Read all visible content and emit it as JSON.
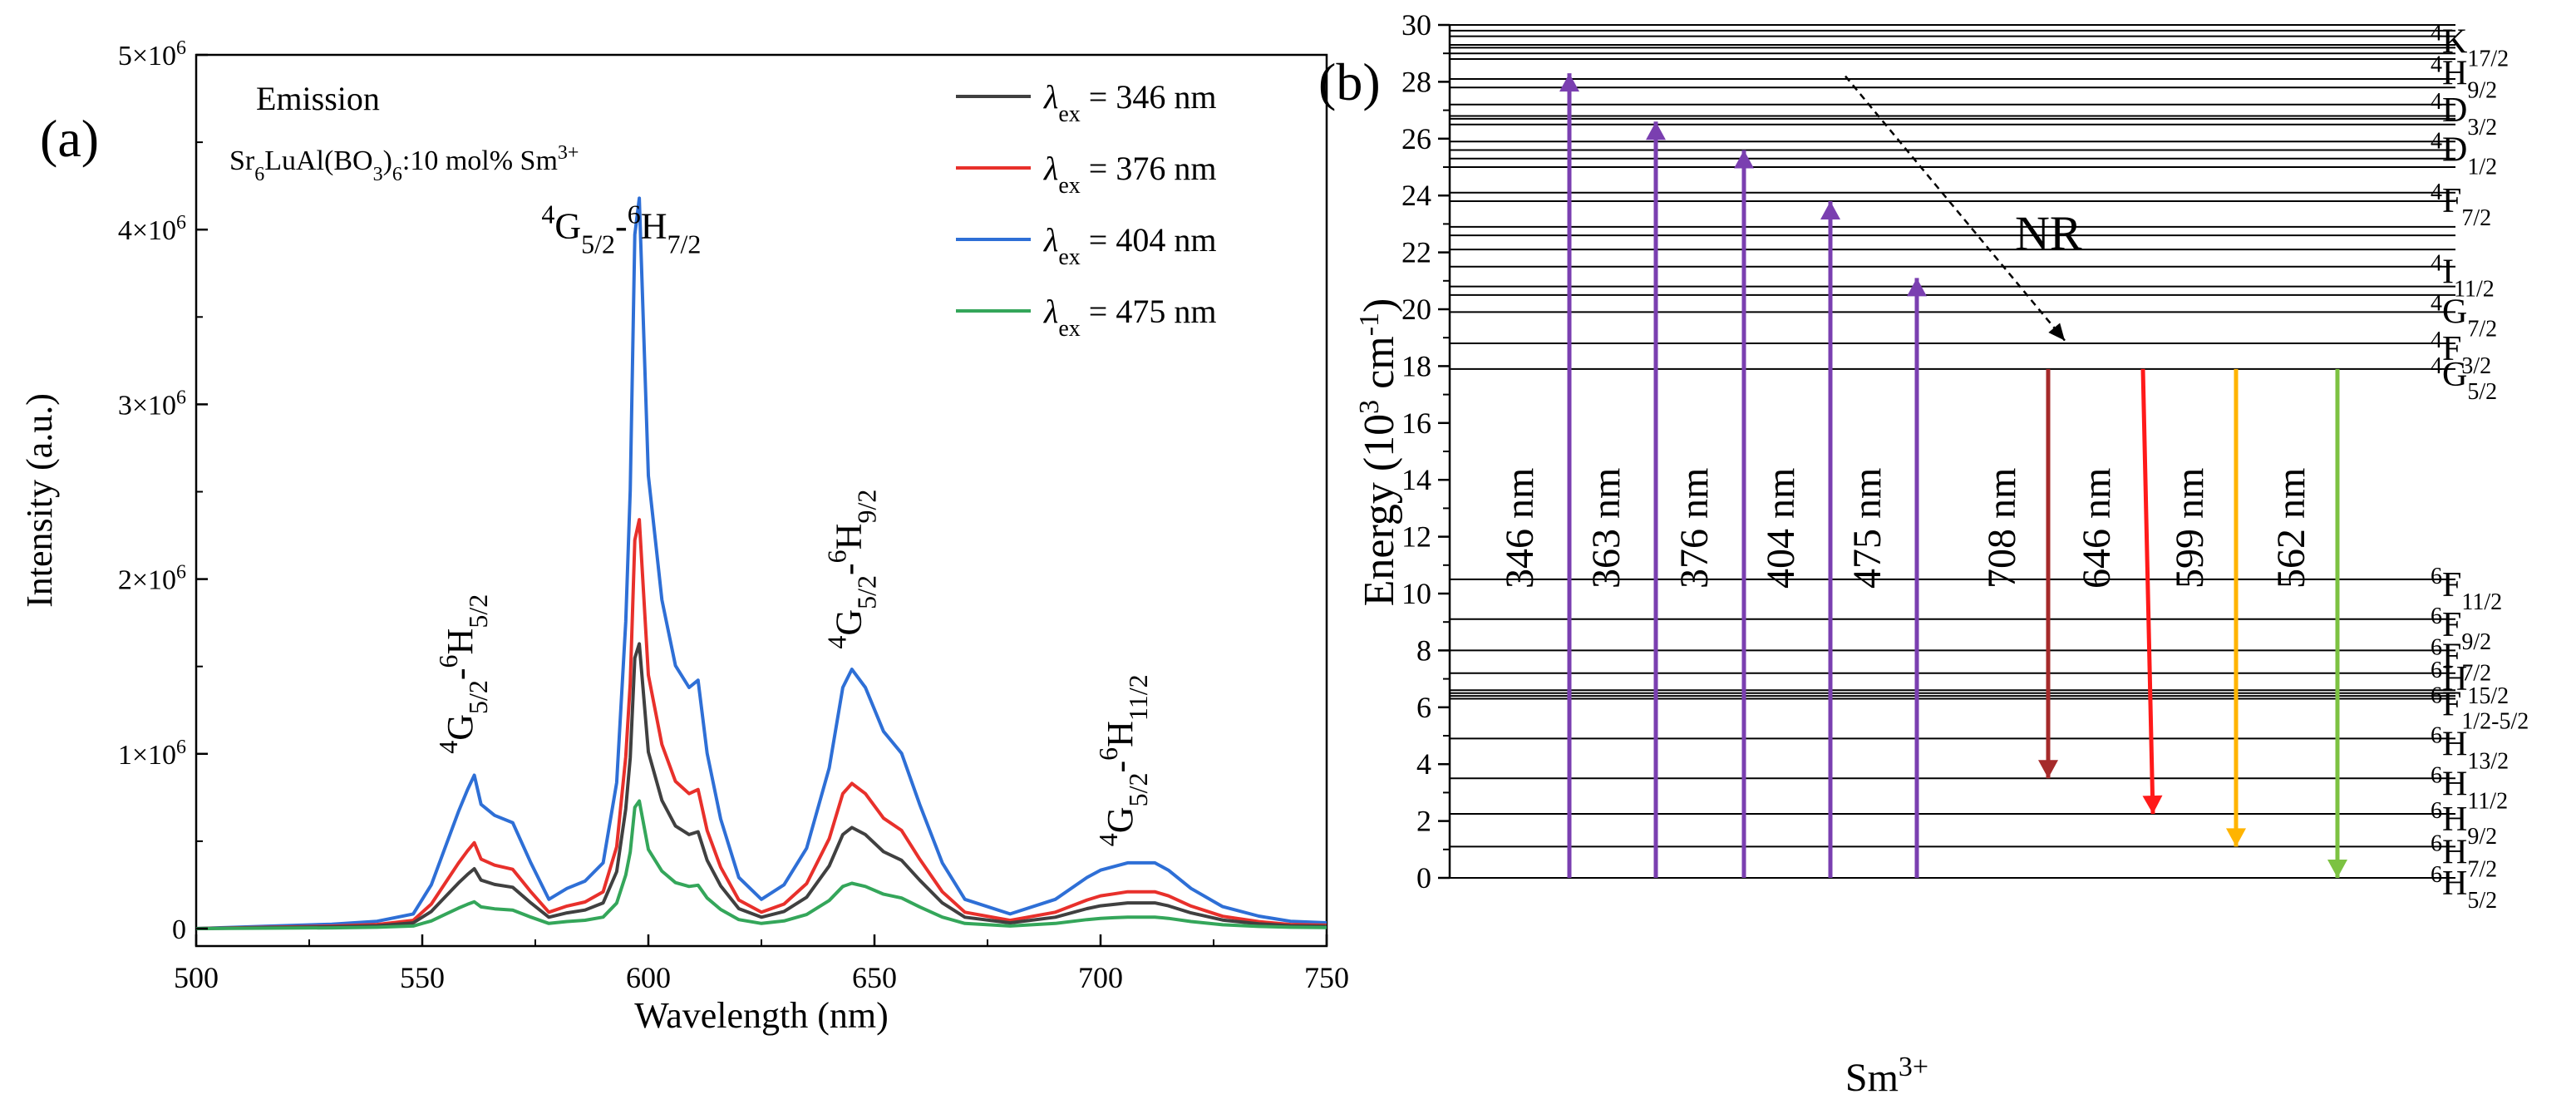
{
  "chart_data": [
    {
      "type": "line",
      "panel_label": "(a)",
      "title": "Emission",
      "sample": {
        "base": "Sr",
        "s1": "6",
        "mid1": "LuAl(BO",
        "s2": "3",
        "mid2": ")",
        "s3": "6",
        "tail": ":10 mol% Sm",
        "sup": "3+"
      },
      "xlabel": "Wavelength (nm)",
      "ylabel": "Intensity (a.u.)",
      "xlim": [
        500,
        750
      ],
      "ylim": [
        -100000,
        5000000
      ],
      "x_ticks": [
        "500",
        "550",
        "600",
        "650",
        "700",
        "750"
      ],
      "y_ticks": [
        {
          "value": 0,
          "mant": "0",
          "exp": ""
        },
        {
          "value": 1000000,
          "mant": "1×10",
          "exp": "6"
        },
        {
          "value": 2000000,
          "mant": "2×10",
          "exp": "6"
        },
        {
          "value": 3000000,
          "mant": "3×10",
          "exp": "6"
        },
        {
          "value": 4000000,
          "mant": "4×10",
          "exp": "6"
        },
        {
          "value": 5000000,
          "mant": "5×10",
          "exp": "6"
        }
      ],
      "x": [
        500,
        515,
        530,
        540,
        548,
        552,
        555,
        558,
        560,
        561.5,
        563,
        566,
        570,
        574,
        578,
        582,
        586,
        590,
        593,
        595,
        596,
        597,
        598,
        600,
        603,
        606,
        609,
        611,
        613,
        616,
        620,
        625,
        630,
        635,
        640,
        643,
        645,
        648,
        652,
        656,
        660,
        665,
        670,
        680,
        690,
        697,
        700,
        703,
        706,
        709,
        712,
        715,
        720,
        727,
        735,
        742,
        750
      ],
      "shape": [
        0.0,
        0.003,
        0.006,
        0.01,
        0.02,
        0.06,
        0.11,
        0.16,
        0.19,
        0.21,
        0.17,
        0.155,
        0.145,
        0.09,
        0.04,
        0.055,
        0.065,
        0.09,
        0.2,
        0.42,
        0.6,
        0.95,
        1.0,
        0.62,
        0.45,
        0.36,
        0.33,
        0.34,
        0.24,
        0.15,
        0.07,
        0.04,
        0.06,
        0.11,
        0.22,
        0.33,
        0.355,
        0.33,
        0.27,
        0.24,
        0.17,
        0.09,
        0.04,
        0.02,
        0.04,
        0.07,
        0.08,
        0.085,
        0.09,
        0.09,
        0.09,
        0.08,
        0.055,
        0.03,
        0.017,
        0.01,
        0.008
      ],
      "series": [
        {
          "name": "346 nm",
          "color": "#404040",
          "peak": 1630000
        },
        {
          "name": "376 nm",
          "color": "#e8302b",
          "peak": 2340000
        },
        {
          "name": "404 nm",
          "color": "#2e6fd6",
          "peak": 4180000
        },
        {
          "name": "475 nm",
          "color": "#34a65a",
          "peak": 730000
        }
      ],
      "legend": {
        "prefix": "λ",
        "sub": "ex",
        "eq": " = ",
        "position": "top-right"
      },
      "annotations": [
        {
          "html": "<tspan baseline-shift='super' font-size='32'>4</tspan>G<tspan baseline-shift='sub' font-size='32'>5/2</tspan>-<tspan baseline-shift='super' font-size='32'>6</tspan>H<tspan baseline-shift='sub' font-size='32'>5/2</tspan>",
          "x": 561,
          "y": 1000000,
          "angle": -90
        },
        {
          "html": "<tspan baseline-shift='super' font-size='32'>4</tspan>G<tspan baseline-shift='sub' font-size='32'>5/2</tspan>-<tspan baseline-shift='super' font-size='32'>6</tspan>H<tspan baseline-shift='sub' font-size='32'>7/2</tspan>",
          "x": 594,
          "y": 3950000,
          "angle": 0
        },
        {
          "html": "<tspan baseline-shift='super' font-size='32'>4</tspan>G<tspan baseline-shift='sub' font-size='32'>5/2</tspan>-<tspan baseline-shift='super' font-size='32'>6</tspan>H<tspan baseline-shift='sub' font-size='32'>9/2</tspan>",
          "x": 647,
          "y": 1600000,
          "angle": -90
        },
        {
          "html": "<tspan baseline-shift='super' font-size='32'>4</tspan>G<tspan baseline-shift='sub' font-size='32'>5/2</tspan>-<tspan baseline-shift='super' font-size='32'>6</tspan>H<tspan baseline-shift='sub' font-size='32'>11/2</tspan>",
          "x": 707,
          "y": 470000,
          "angle": -90
        }
      ]
    },
    {
      "type": "energy-level-diagram",
      "panel_label": "(b)",
      "ion": "Sm",
      "ion_charge": "3+",
      "ylabel": "Energy (10",
      "ylabel_sup": "3",
      "ylabel_tail": " cm",
      "ylabel_sup2": "-1",
      "ylabel_end": ")",
      "ylim": [
        0,
        30
      ],
      "y_ticks": [
        0,
        2,
        4,
        6,
        8,
        10,
        12,
        14,
        16,
        18,
        20,
        22,
        24,
        26,
        28,
        30
      ],
      "levels": [
        0.0,
        1.1,
        2.25,
        3.5,
        4.9,
        6.3,
        6.4,
        6.5,
        6.6,
        7.2,
        8.0,
        9.1,
        10.5,
        17.9,
        18.8,
        19.9,
        20.5,
        20.8,
        21.5,
        22.1,
        22.6,
        22.9,
        23.8,
        24.1,
        25.0,
        25.3,
        25.6,
        25.9,
        26.5,
        26.7,
        26.8,
        27.2,
        27.8,
        28.1,
        28.8,
        29.0,
        29.2,
        29.3,
        29.6,
        29.8,
        30.0
      ],
      "level_labels": [
        {
          "S": "6",
          "L": "H",
          "J": "5/2",
          "y": 0.0
        },
        {
          "S": "6",
          "L": "H",
          "J": "7/2",
          "y": 1.1
        },
        {
          "S": "6",
          "L": "H",
          "J": "9/2",
          "y": 2.25
        },
        {
          "S": "6",
          "L": "H",
          "J": "11/2",
          "y": 3.5
        },
        {
          "S": "6",
          "L": "H",
          "J": "13/2",
          "y": 4.9
        },
        {
          "S": "6",
          "L": "F",
          "J": "1/2-5/2",
          "y": 6.3
        },
        {
          "S": "6",
          "L": "H",
          "J": "15/2",
          "y": 7.2
        },
        {
          "S": "6",
          "L": "F",
          "J": "7/2",
          "y": 8.0
        },
        {
          "S": "6",
          "L": "F",
          "J": "9/2",
          "y": 9.1
        },
        {
          "S": "6",
          "L": "F",
          "J": "11/2",
          "y": 10.5
        },
        {
          "S": "4",
          "L": "G",
          "J": "5/2",
          "y": 17.9
        },
        {
          "S": "4",
          "L": "F",
          "J": "3/2",
          "y": 18.8
        },
        {
          "S": "4",
          "L": "G",
          "J": "7/2",
          "y": 20.1
        },
        {
          "S": "4",
          "L": "I",
          "J": "11/2",
          "y": 21.5
        },
        {
          "S": "4",
          "L": "F",
          "J": "7/2",
          "y": 24.0
        },
        {
          "S": "4",
          "L": "D",
          "J": "1/2",
          "y": 25.8
        },
        {
          "S": "4",
          "L": "D",
          "J": "3/2",
          "y": 27.2
        },
        {
          "S": "4",
          "L": "H",
          "J": "9/2",
          "y": 28.5
        },
        {
          "S": "4",
          "L": "K",
          "J": "17/2",
          "y": 29.6
        }
      ],
      "excitations": [
        {
          "label": "346 nm",
          "top": 28.3,
          "color": "#7a3fb0"
        },
        {
          "label": "363 nm",
          "top": 26.6,
          "color": "#7a3fb0"
        },
        {
          "label": "376 nm",
          "top": 25.6,
          "color": "#7a3fb0"
        },
        {
          "label": "404 nm",
          "top": 23.8,
          "color": "#7a3fb0"
        },
        {
          "label": "475 nm",
          "top": 21.1,
          "color": "#7a3fb0"
        }
      ],
      "emissions": [
        {
          "label": "708 nm",
          "bottom": 3.5,
          "color": "#a52a2a"
        },
        {
          "label": "646 nm",
          "bottom": 2.25,
          "color": "#ff1a1a"
        },
        {
          "label": "599 nm",
          "bottom": 1.1,
          "color": "#ffb400"
        },
        {
          "label": "562 nm",
          "bottom": 0.0,
          "color": "#7cc242"
        }
      ],
      "nr_label": "NR"
    }
  ]
}
